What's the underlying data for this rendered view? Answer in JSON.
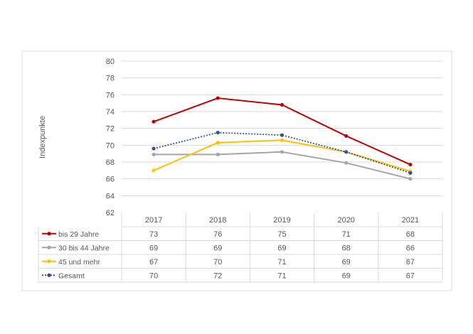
{
  "chart_data": {
    "type": "line",
    "ylabel": "Indexpunkte",
    "ylim": [
      62,
      80
    ],
    "yticks": [
      62,
      64,
      66,
      68,
      70,
      72,
      74,
      76,
      78,
      80
    ],
    "grid": true,
    "legend": "data-table-left",
    "categories": [
      "2017",
      "2018",
      "2019",
      "2020",
      "2021"
    ],
    "series": [
      {
        "name": "bis 29 Jahre",
        "color": "#C00000",
        "style": "solid",
        "values": [
          72.8,
          75.6,
          74.8,
          71.1,
          67.7
        ],
        "labels": [
          "73",
          "76",
          "75",
          "71",
          "68"
        ]
      },
      {
        "name": "30 bis 44 Jahre",
        "color": "#A5A5A5",
        "style": "solid",
        "values": [
          68.9,
          68.9,
          69.2,
          67.9,
          66.0
        ],
        "labels": [
          "69",
          "69",
          "69",
          "68",
          "66"
        ]
      },
      {
        "name": "45 und mehr",
        "color": "#FFC000",
        "style": "solid",
        "values": [
          67.0,
          70.3,
          70.6,
          69.2,
          66.9
        ],
        "labels": [
          "67",
          "70",
          "71",
          "69",
          "67"
        ]
      },
      {
        "name": "Gesamt",
        "color": "#2F5597",
        "style": "dotted",
        "values": [
          69.6,
          71.5,
          71.2,
          69.2,
          66.7
        ],
        "labels": [
          "70",
          "72",
          "71",
          "69",
          "67"
        ]
      }
    ]
  }
}
